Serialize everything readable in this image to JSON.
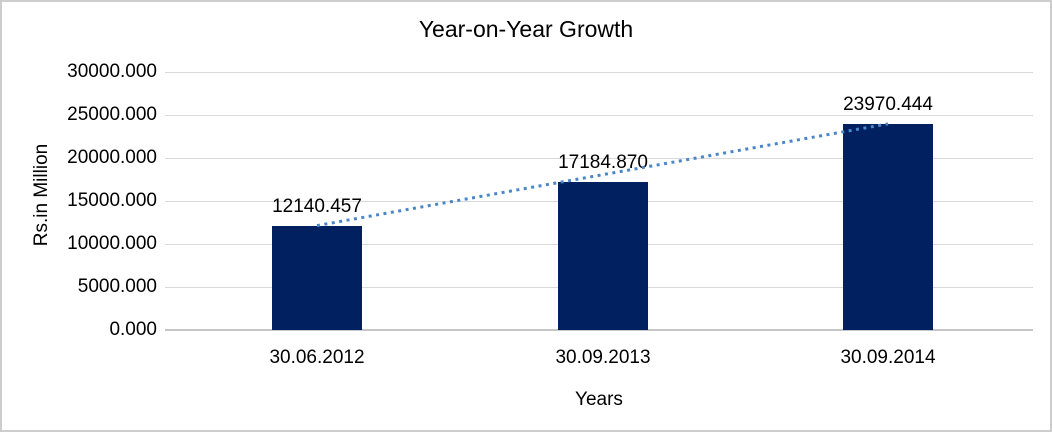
{
  "window": {
    "background": "#FFFFFF",
    "border_color": "#CDCDCD"
  },
  "chart_data": {
    "type": "bar",
    "title": "Year-on-Year Growth",
    "xlabel": "Years",
    "ylabel": "Rs.in Million",
    "categories": [
      "30.06.2012",
      "30.09.2013",
      "30.09.2014"
    ],
    "values": [
      12140.457,
      17184.87,
      23970.444
    ],
    "value_labels": [
      "12140.457",
      "17184.870",
      "23970.444"
    ],
    "ylim": [
      0,
      30000
    ],
    "ytick_labels": [
      "0.000",
      "5000.000",
      "10000.000",
      "15000.000",
      "20000.000",
      "25000.000",
      "30000.000"
    ],
    "grid": true,
    "legend": false,
    "trendline": {
      "type": "linear",
      "style": "dotted",
      "color": "#4A86C8"
    },
    "colors": {
      "bar": "#002060",
      "gridline": "#D9D9D9",
      "axis_line": "#C6C6C6",
      "text": "#000000"
    }
  }
}
